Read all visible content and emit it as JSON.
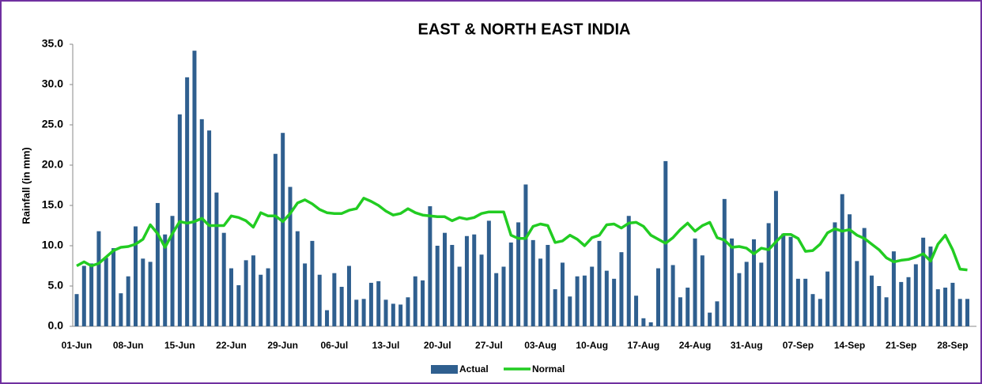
{
  "chart_data": {
    "type": "bar_line",
    "title": "EAST & NORTH EAST INDIA",
    "y_label": "Rainfall (in mm)",
    "categories": [
      "01-Jun",
      null,
      null,
      null,
      null,
      null,
      null,
      "08-Jun",
      null,
      null,
      null,
      null,
      null,
      null,
      "15-Jun",
      null,
      null,
      null,
      null,
      null,
      null,
      "22-Jun",
      null,
      null,
      null,
      null,
      null,
      null,
      "29-Jun",
      null,
      null,
      null,
      null,
      null,
      null,
      "06-Jul",
      null,
      null,
      null,
      null,
      null,
      null,
      "13-Jul",
      null,
      null,
      null,
      null,
      null,
      null,
      "20-Jul",
      null,
      null,
      null,
      null,
      null,
      null,
      "27-Jul",
      null,
      null,
      null,
      null,
      null,
      null,
      "03-Aug",
      null,
      null,
      null,
      null,
      null,
      null,
      "10-Aug",
      null,
      null,
      null,
      null,
      null,
      null,
      "17-Aug",
      null,
      null,
      null,
      null,
      null,
      null,
      "24-Aug",
      null,
      null,
      null,
      null,
      null,
      null,
      "31-Aug",
      null,
      null,
      null,
      null,
      null,
      null,
      "07-Sep",
      null,
      null,
      null,
      null,
      null,
      null,
      "14-Sep",
      null,
      null,
      null,
      null,
      null,
      null,
      "21-Sep",
      null,
      null,
      null,
      null,
      null,
      null,
      "28-Sep",
      null,
      null
    ],
    "series": [
      {
        "name": "Actual",
        "kind": "bar",
        "color": "#2f5f8f",
        "values": [
          4.0,
          7.5,
          7.8,
          11.8,
          8.5,
          9.7,
          4.1,
          6.2,
          12.4,
          8.4,
          8.0,
          15.3,
          11.4,
          13.7,
          26.3,
          30.9,
          34.2,
          25.7,
          24.3,
          16.6,
          11.6,
          7.2,
          5.1,
          8.2,
          8.8,
          6.4,
          7.2,
          21.4,
          24.0,
          17.3,
          11.8,
          7.8,
          10.6,
          6.4,
          2.0,
          6.6,
          4.9,
          7.5,
          3.3,
          3.4,
          5.4,
          5.6,
          3.3,
          2.8,
          2.7,
          3.6,
          6.2,
          5.7,
          14.9,
          10.0,
          11.6,
          10.1,
          7.4,
          11.2,
          11.4,
          8.9,
          13.1,
          6.6,
          7.4,
          10.4,
          12.9,
          17.6,
          10.7,
          8.4,
          10.1,
          4.6,
          7.9,
          3.7,
          6.2,
          6.3,
          7.4,
          10.6,
          6.9,
          5.9,
          9.2,
          13.7,
          3.8,
          1.0,
          0.5,
          7.2,
          20.5,
          7.6,
          3.6,
          4.8,
          10.9,
          8.8,
          1.7,
          3.1,
          15.8,
          10.9,
          6.6,
          8.0,
          10.8,
          7.9,
          12.8,
          16.8,
          11.5,
          11.1,
          5.9,
          5.9,
          4.0,
          3.4,
          6.8,
          12.9,
          16.4,
          13.9,
          8.1,
          12.2,
          6.3,
          5.0,
          3.6,
          9.3,
          5.5,
          6.1,
          7.7,
          11.0,
          9.9,
          4.6,
          4.8,
          5.4,
          3.4,
          3.4
        ]
      },
      {
        "name": "Normal",
        "kind": "line",
        "color": "#22cc22",
        "values": [
          7.5,
          8.0,
          7.5,
          7.8,
          8.6,
          9.4,
          9.8,
          9.9,
          10.2,
          10.8,
          12.6,
          11.5,
          9.8,
          11.5,
          13.0,
          12.8,
          13.0,
          13.4,
          12.5,
          12.5,
          12.5,
          13.7,
          13.5,
          13.1,
          12.3,
          14.1,
          13.7,
          13.7,
          13.0,
          14.0,
          15.3,
          15.7,
          15.2,
          14.5,
          14.1,
          14.0,
          14.0,
          14.4,
          14.6,
          15.9,
          15.5,
          15.0,
          14.3,
          13.8,
          14.0,
          14.6,
          14.1,
          13.8,
          13.7,
          13.6,
          13.6,
          13.1,
          13.5,
          13.3,
          13.5,
          14.0,
          14.2,
          14.2,
          14.2,
          11.3,
          10.9,
          10.9,
          12.4,
          12.7,
          12.5,
          10.4,
          10.6,
          11.3,
          10.8,
          10.0,
          11.0,
          11.3,
          12.6,
          12.7,
          12.2,
          12.8,
          12.9,
          12.4,
          11.3,
          10.8,
          10.3,
          11.0,
          12.0,
          12.8,
          11.8,
          12.5,
          12.9,
          11.0,
          10.7,
          9.8,
          9.9,
          9.7,
          9.0,
          9.7,
          9.5,
          10.5,
          11.4,
          11.4,
          10.9,
          9.3,
          9.4,
          10.2,
          11.6,
          12.1,
          11.8,
          12.0,
          11.3,
          10.9,
          10.2,
          9.5,
          8.5,
          8.0,
          8.2,
          8.3,
          8.6,
          9.0,
          8.1,
          10.2,
          11.3,
          9.5,
          7.1,
          7.0
        ]
      }
    ],
    "ylim": [
      0,
      35
    ],
    "yticks": [
      {
        "value": 0,
        "label": "0.0"
      },
      {
        "value": 5,
        "label": "5.0"
      },
      {
        "value": 10,
        "label": "10.0"
      },
      {
        "value": 15,
        "label": "15.0"
      },
      {
        "value": 20,
        "label": "20.0"
      },
      {
        "value": 25,
        "label": "25.0"
      },
      {
        "value": 30,
        "label": "30.0"
      },
      {
        "value": 35,
        "label": "35.0"
      }
    ],
    "grid": false,
    "legend": "bottom"
  }
}
